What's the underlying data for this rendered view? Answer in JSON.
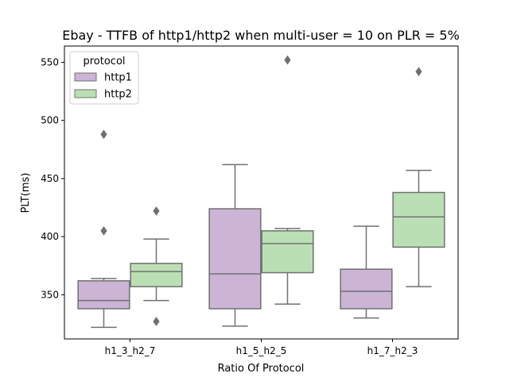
{
  "chart_data": {
    "type": "box",
    "title": "Ebay - TTFB of http1/http2 when multi-user = 10 on PLR = 5%",
    "xlabel": "Ratio Of Protocol",
    "ylabel": "PLT(ms)",
    "ylim": [
      312,
      564
    ],
    "yticks": [
      350,
      400,
      450,
      500,
      550
    ],
    "categories": [
      "h1_3_h2_7",
      "h1_5_h2_5",
      "h1_7_h2_3"
    ],
    "legend": {
      "title": "protocol",
      "position": "top-left",
      "entries": [
        "http1",
        "http2"
      ]
    },
    "series": [
      {
        "name": "http1",
        "color": "#cbb4d6",
        "boxes": [
          {
            "whisker_low": 322,
            "q1": 338,
            "median": 345,
            "q3": 362,
            "whisker_high": 364,
            "outliers": [
              405,
              488
            ]
          },
          {
            "whisker_low": 323,
            "q1": 338,
            "median": 368,
            "q3": 424,
            "whisker_high": 462,
            "outliers": []
          },
          {
            "whisker_low": 330,
            "q1": 338,
            "median": 353,
            "q3": 372,
            "whisker_high": 409,
            "outliers": []
          }
        ]
      },
      {
        "name": "http2",
        "color": "#bbdfb4",
        "boxes": [
          {
            "whisker_low": 345,
            "q1": 357,
            "median": 370,
            "q3": 377,
            "whisker_high": 398,
            "outliers": [
              327,
              422
            ]
          },
          {
            "whisker_low": 342,
            "q1": 369,
            "median": 394,
            "q3": 405,
            "whisker_high": 407,
            "outliers": [
              552
            ]
          },
          {
            "whisker_low": 357,
            "q1": 391,
            "median": 417,
            "q3": 438,
            "whisker_high": 457,
            "outliers": [
              542
            ]
          }
        ]
      }
    ]
  }
}
